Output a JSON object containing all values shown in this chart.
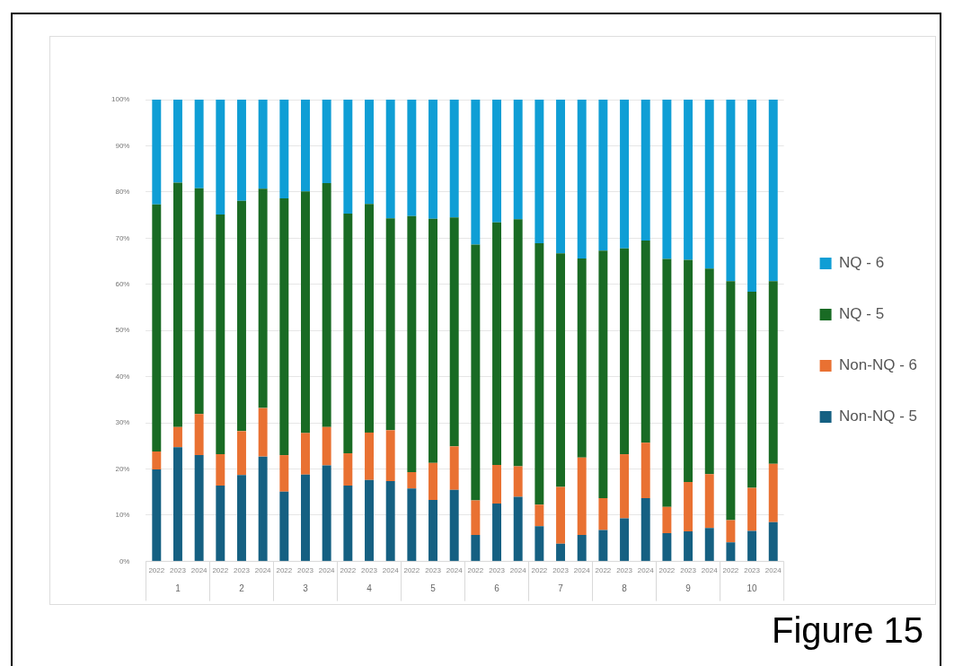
{
  "chart_data": {
    "type": "bar",
    "stacked": true,
    "categories": [
      "2022",
      "2023",
      "2024",
      "2022",
      "2023",
      "2024",
      "2022",
      "2023",
      "2024",
      "2022",
      "2023",
      "2024",
      "2022",
      "2023",
      "2024",
      "2022",
      "2023",
      "2024",
      "2022",
      "2023",
      "2024",
      "2022",
      "2023",
      "2024",
      "2022",
      "2023",
      "2024",
      "2022",
      "2023",
      "2024"
    ],
    "series": [
      {
        "name": "Non-NQ - 5",
        "color": "#156082",
        "values": [
          19.9,
          24.7,
          23.0,
          16.4,
          18.7,
          22.7,
          15.1,
          18.8,
          20.8,
          16.4,
          17.6,
          17.4,
          15.8,
          13.3,
          15.5,
          5.7,
          12.5,
          14.0,
          7.6,
          3.8,
          5.7,
          6.8,
          9.3,
          13.7,
          6.1,
          6.5,
          7.2,
          4.1,
          6.6,
          8.5
        ]
      },
      {
        "name": "Non-NQ - 6",
        "color": "#e97132",
        "values": [
          3.9,
          4.4,
          8.9,
          6.8,
          9.5,
          10.5,
          7.9,
          9.0,
          8.3,
          7.0,
          10.3,
          11.0,
          3.5,
          8.0,
          9.4,
          7.5,
          8.4,
          6.6,
          4.7,
          12.3,
          16.8,
          6.9,
          13.9,
          12.0,
          5.7,
          10.7,
          11.7,
          4.8,
          9.3,
          12.6
        ]
      },
      {
        "name": "NQ - 5",
        "color": "#196b24",
        "values": [
          53.5,
          52.9,
          48.9,
          51.9,
          49.9,
          47.5,
          55.6,
          52.3,
          52.8,
          51.9,
          49.5,
          45.9,
          55.5,
          52.9,
          49.6,
          55.4,
          52.5,
          53.5,
          56.6,
          50.6,
          43.1,
          53.6,
          44.6,
          43.8,
          53.7,
          48.1,
          44.5,
          51.8,
          42.5,
          39.6
        ]
      },
      {
        "name": "NQ - 6",
        "color": "#0f9ed5",
        "values": [
          22.7,
          18.0,
          19.2,
          24.9,
          21.9,
          19.3,
          21.4,
          19.9,
          18.1,
          24.7,
          22.6,
          25.7,
          25.2,
          25.8,
          25.5,
          31.4,
          26.6,
          25.9,
          31.1,
          33.3,
          34.4,
          32.7,
          32.2,
          30.5,
          34.5,
          34.7,
          36.6,
          39.3,
          41.6,
          39.3
        ]
      }
    ],
    "ylim": [
      0,
      100
    ],
    "yticks": [
      {
        "value": 0,
        "label": "0%"
      },
      {
        "value": 10,
        "label": "10%"
      },
      {
        "value": 20,
        "label": "20%"
      },
      {
        "value": 30,
        "label": "30%"
      },
      {
        "value": 40,
        "label": "40%"
      },
      {
        "value": 50,
        "label": "50%"
      },
      {
        "value": 60,
        "label": "60%"
      },
      {
        "value": 70,
        "label": "70%"
      },
      {
        "value": 80,
        "label": "80%"
      },
      {
        "value": 90,
        "label": "90%"
      },
      {
        "value": 100,
        "label": "100%"
      }
    ],
    "grid": "y",
    "legend": "right",
    "annotations": [
      "1",
      "2",
      "3",
      "4",
      "5",
      "6",
      "7",
      "8",
      "9",
      "10",
      "Figure 15"
    ]
  }
}
